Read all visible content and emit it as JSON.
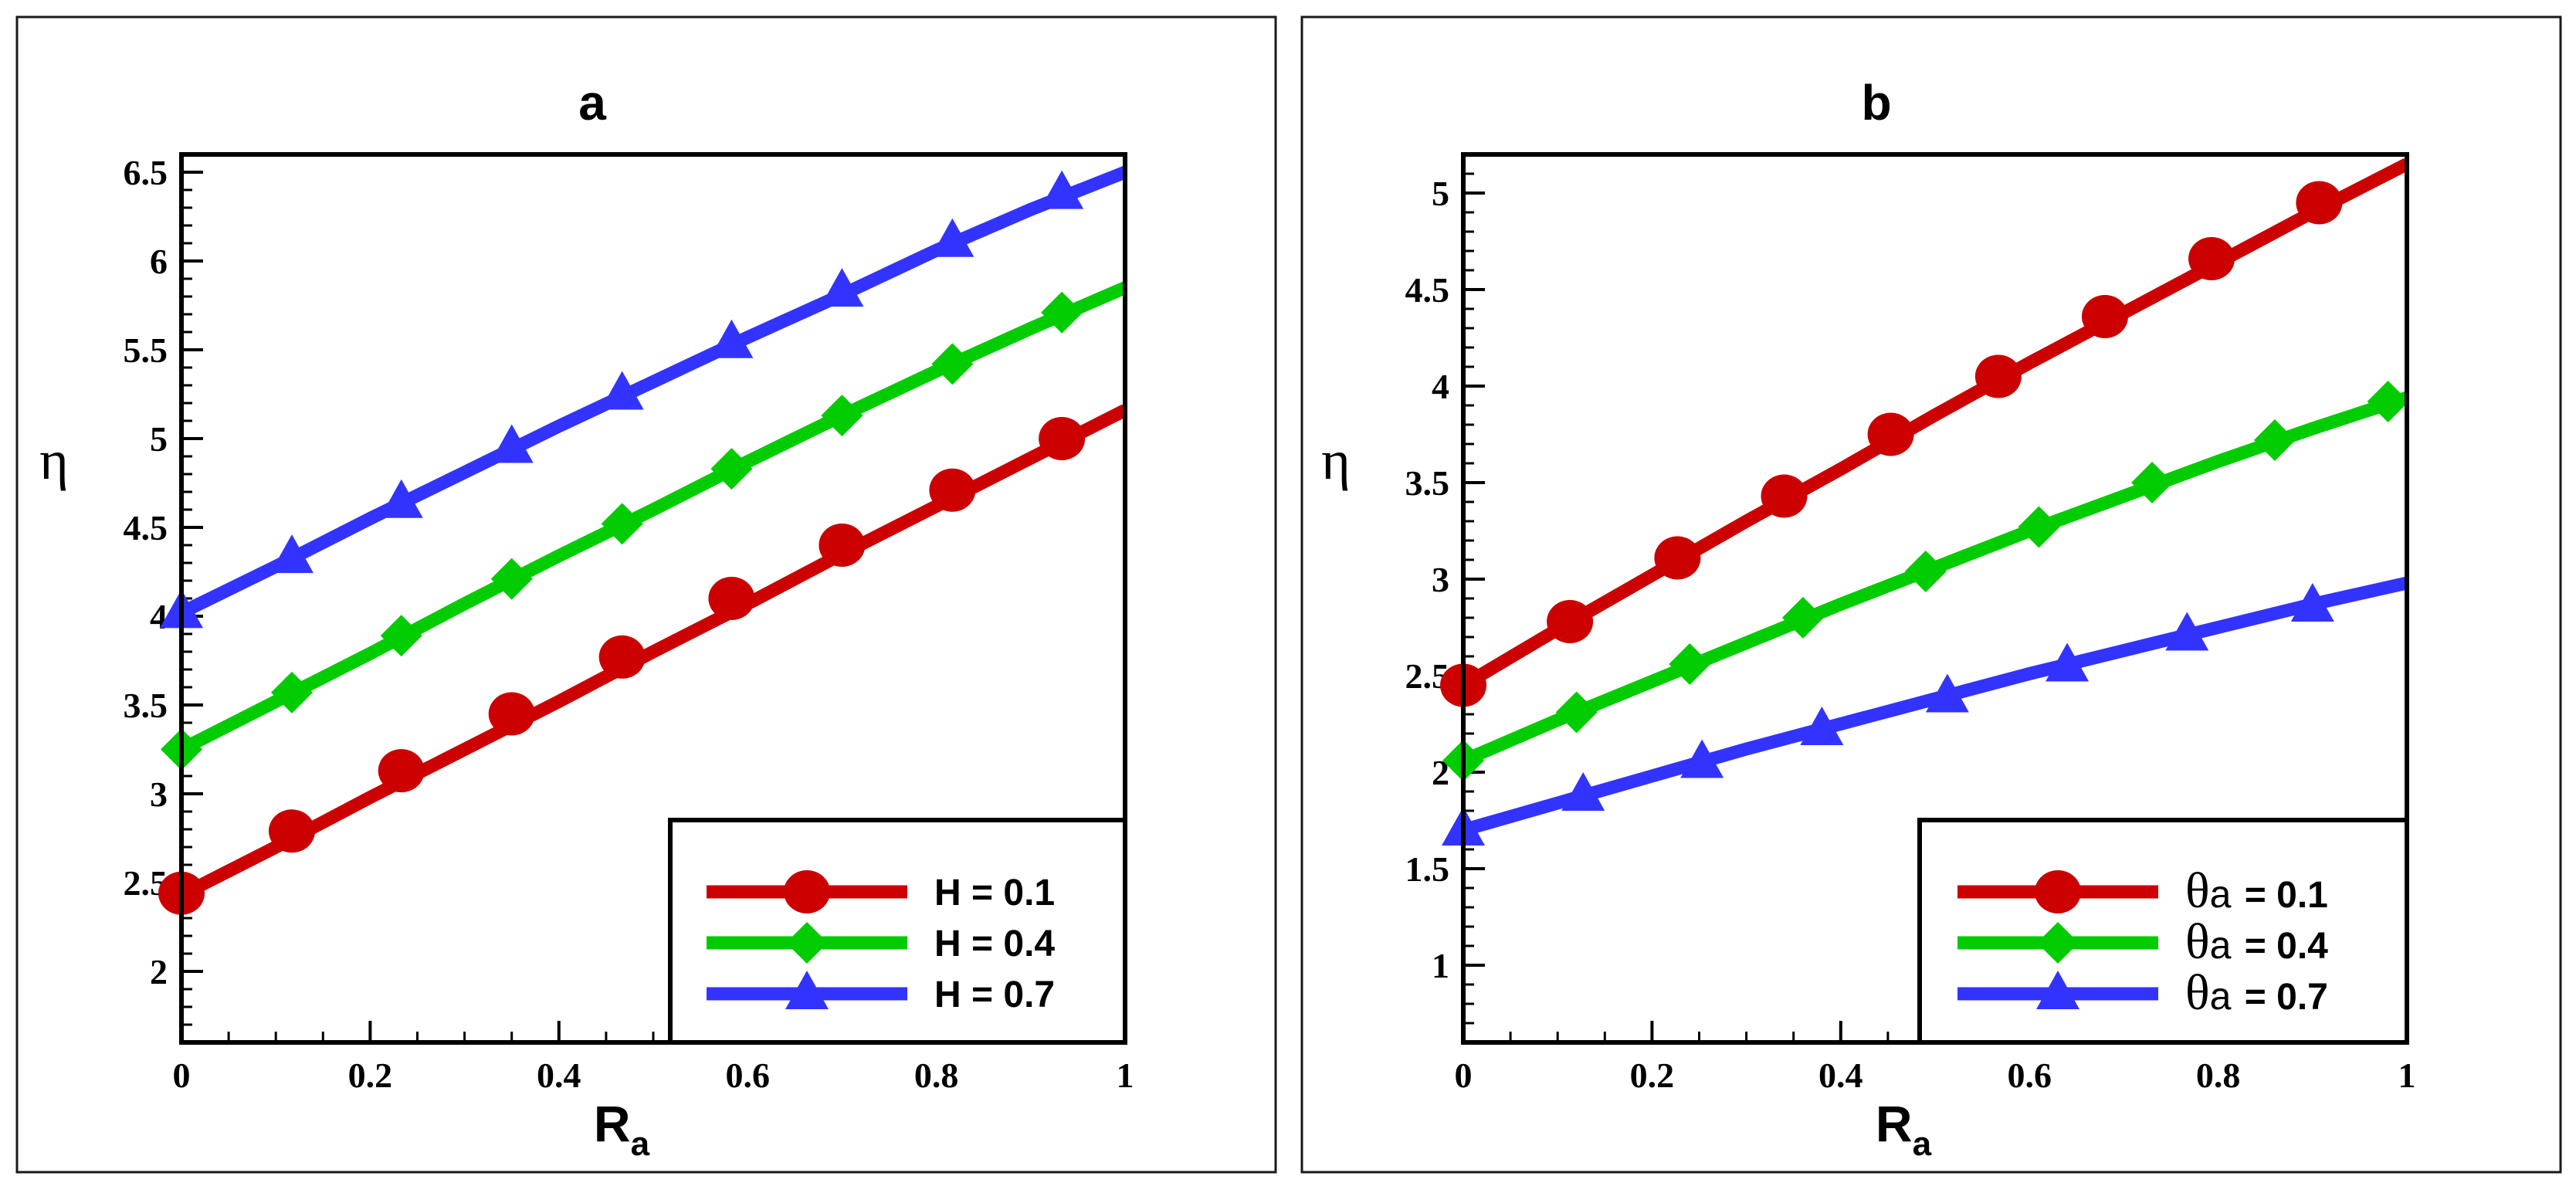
{
  "chart_data": [
    {
      "type": "line",
      "title": "a",
      "xlabel": "R",
      "xlabel_sub": "a",
      "ylabel": "η",
      "xlim": [
        0,
        1
      ],
      "ylim": [
        1.6,
        6.6
      ],
      "xticks": [
        0,
        0.2,
        0.4,
        0.6,
        0.8,
        1
      ],
      "xtick_labels": [
        "0",
        "0.2",
        "0.4",
        "0.6",
        "0.8",
        "1"
      ],
      "yticks": [
        2,
        2.5,
        3,
        3.5,
        4,
        4.5,
        5,
        5.5,
        6,
        6.5
      ],
      "ytick_labels": [
        "2",
        "2.5",
        "3",
        "3.5",
        "4",
        "4.5",
        "5",
        "5.5",
        "6",
        "6.5"
      ],
      "x_minor_step": 0.05,
      "y_minor_step": 0.1,
      "legend_position": "bottom-right",
      "series": [
        {
          "name": "H = 0.1",
          "color": "#cc0000",
          "marker": "circle",
          "x": [
            0,
            0.1,
            0.2,
            0.3,
            0.4,
            0.5,
            0.6,
            0.7,
            0.8,
            0.9,
            1.0
          ],
          "y": [
            2.43,
            2.7,
            2.98,
            3.25,
            3.52,
            3.8,
            4.07,
            4.35,
            4.62,
            4.89,
            5.16
          ],
          "marker_x": [
            0,
            0.117,
            0.233,
            0.35,
            0.467,
            0.583,
            0.7,
            0.817,
            0.933
          ],
          "marker_y": [
            2.44,
            2.79,
            3.13,
            3.45,
            3.77,
            4.1,
            4.4,
            4.71,
            5.0
          ]
        },
        {
          "name": "H = 0.4",
          "color": "#00cc00",
          "marker": "diamond",
          "x": [
            0,
            0.1,
            0.2,
            0.3,
            0.4,
            0.5,
            0.6,
            0.7,
            0.8,
            0.9,
            1.0
          ],
          "y": [
            3.25,
            3.52,
            3.79,
            4.07,
            4.34,
            4.6,
            4.87,
            5.13,
            5.38,
            5.62,
            5.85
          ],
          "marker_x": [
            0,
            0.117,
            0.233,
            0.35,
            0.467,
            0.583,
            0.7,
            0.817,
            0.933
          ],
          "marker_y": [
            3.25,
            3.57,
            3.89,
            4.21,
            4.52,
            4.83,
            5.13,
            5.42,
            5.71
          ]
        },
        {
          "name": "H = 0.7",
          "color": "#3333ff",
          "marker": "triangle",
          "x": [
            0,
            0.1,
            0.2,
            0.3,
            0.4,
            0.5,
            0.6,
            0.7,
            0.8,
            0.9,
            1.0
          ],
          "y": [
            4.02,
            4.28,
            4.55,
            4.81,
            5.07,
            5.32,
            5.57,
            5.81,
            6.06,
            6.29,
            6.5
          ],
          "marker_x": [
            0,
            0.117,
            0.233,
            0.35,
            0.467,
            0.583,
            0.7,
            0.817,
            0.933
          ],
          "marker_y": [
            4.02,
            4.33,
            4.64,
            4.95,
            5.25,
            5.54,
            5.83,
            6.11,
            6.38
          ]
        }
      ]
    },
    {
      "type": "line",
      "title": "b",
      "xlabel": "R",
      "xlabel_sub": "a",
      "ylabel": "η",
      "xlim": [
        0,
        1
      ],
      "ylim": [
        0.6,
        5.2
      ],
      "xticks": [
        0,
        0.2,
        0.4,
        0.6,
        0.8,
        1
      ],
      "xtick_labels": [
        "0",
        "0.2",
        "0.4",
        "0.6",
        "0.8",
        "1"
      ],
      "yticks": [
        1,
        1.5,
        2,
        2.5,
        3,
        3.5,
        4,
        4.5,
        5
      ],
      "ytick_labels": [
        "1",
        "1.5",
        "2",
        "2.5",
        "3",
        "3.5",
        "4",
        "4.5",
        "5"
      ],
      "x_minor_step": 0.05,
      "y_minor_step": 0.1,
      "legend_position": "bottom-right",
      "series": [
        {
          "name": "θa = 0.1",
          "legend_symbol": "θ",
          "legend_sub": "a",
          "legend_value": " = 0.1",
          "color": "#cc0000",
          "marker": "circle",
          "x": [
            0,
            0.1,
            0.2,
            0.3,
            0.4,
            0.5,
            0.6,
            0.7,
            0.8,
            0.9,
            1.0
          ],
          "y": [
            2.45,
            2.74,
            3.02,
            3.3,
            3.57,
            3.85,
            4.12,
            4.38,
            4.64,
            4.9,
            5.15
          ],
          "marker_x": [
            0,
            0.113,
            0.227,
            0.34,
            0.453,
            0.567,
            0.68,
            0.793,
            0.907
          ],
          "marker_y": [
            2.45,
            2.78,
            3.11,
            3.43,
            3.75,
            4.05,
            4.36,
            4.66,
            4.95
          ]
        },
        {
          "name": "θa = 0.4",
          "legend_symbol": "θ",
          "legend_sub": "a",
          "legend_value": " = 0.4",
          "color": "#00cc00",
          "marker": "diamond",
          "x": [
            0,
            0.1,
            0.2,
            0.3,
            0.4,
            0.5,
            0.6,
            0.7,
            0.8,
            0.9,
            1.0
          ],
          "y": [
            2.06,
            2.27,
            2.47,
            2.67,
            2.87,
            3.06,
            3.25,
            3.43,
            3.61,
            3.78,
            3.94
          ],
          "marker_x": [
            0,
            0.12,
            0.24,
            0.36,
            0.49,
            0.61,
            0.73,
            0.86,
            0.98
          ],
          "marker_y": [
            2.06,
            2.31,
            2.56,
            2.8,
            3.04,
            3.27,
            3.5,
            3.72,
            3.92
          ]
        },
        {
          "name": "θa = 0.7",
          "legend_symbol": "θ",
          "legend_sub": "a",
          "legend_value": " = 0.7",
          "color": "#3333ff",
          "marker": "triangle",
          "x": [
            0,
            0.1,
            0.2,
            0.3,
            0.4,
            0.5,
            0.6,
            0.7,
            0.8,
            0.9,
            1.0
          ],
          "y": [
            1.7,
            1.84,
            1.98,
            2.12,
            2.25,
            2.38,
            2.51,
            2.63,
            2.75,
            2.87,
            2.98
          ],
          "marker_x": [
            0,
            0.127,
            0.253,
            0.38,
            0.513,
            0.64,
            0.767,
            0.9
          ],
          "marker_y": [
            1.7,
            1.88,
            2.05,
            2.22,
            2.39,
            2.55,
            2.71,
            2.86
          ]
        }
      ]
    }
  ]
}
